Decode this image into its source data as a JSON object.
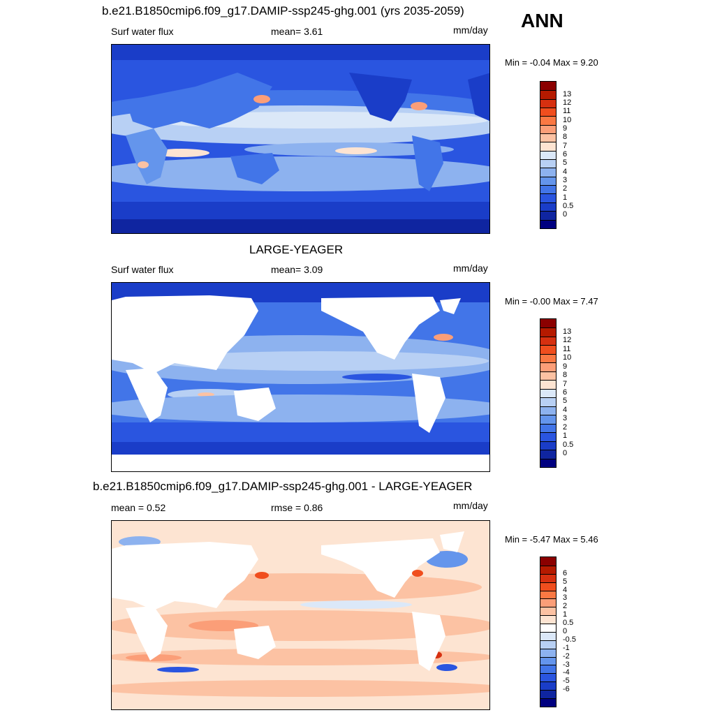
{
  "header": {
    "ann_label": "ANN"
  },
  "panels": [
    {
      "title": "b.e21.B1850cmip6.f09_g17.DAMIP-ssp245-ghg.001 (yrs 2035-2059)",
      "left_label": "Surf water flux",
      "mid_label": "mean=   3.61",
      "units": "mm/day",
      "minmax": "Min =  -0.04 Max =    9.20",
      "land_filled": true,
      "colorbar": {
        "colors": [
          "#8b0000",
          "#b51a00",
          "#d63010",
          "#f04e1e",
          "#fa7843",
          "#fb9e78",
          "#fcc2a3",
          "#fde4d2",
          "#dbe8f8",
          "#b8d0f4",
          "#8db2ef",
          "#6495ec",
          "#4275e8",
          "#2a55e0",
          "#1a3dc8",
          "#0f25a0",
          "#000080"
        ],
        "ticks": [
          "13",
          "12",
          "11",
          "10",
          "9",
          "8",
          "7",
          "6",
          "5",
          "4",
          "3",
          "2",
          "1",
          "0.5",
          "0"
        ]
      }
    },
    {
      "title": "LARGE-YEAGER",
      "left_label": "Surf water flux",
      "mid_label": "mean=   3.09",
      "units": "mm/day",
      "minmax": "Min =  -0.00 Max =    7.47",
      "land_filled": false,
      "colorbar": {
        "colors": [
          "#8b0000",
          "#b51a00",
          "#d63010",
          "#f04e1e",
          "#fa7843",
          "#fb9e78",
          "#fcc2a3",
          "#fde4d2",
          "#dbe8f8",
          "#b8d0f4",
          "#8db2ef",
          "#6495ec",
          "#4275e8",
          "#2a55e0",
          "#1a3dc8",
          "#0f25a0",
          "#000080"
        ],
        "ticks": [
          "13",
          "12",
          "11",
          "10",
          "9",
          "8",
          "7",
          "6",
          "5",
          "4",
          "3",
          "2",
          "1",
          "0.5",
          "0"
        ]
      }
    },
    {
      "title": "b.e21.B1850cmip6.f09_g17.DAMIP-ssp245-ghg.001 - LARGE-YEAGER",
      "left_label": "mean =    0.52",
      "mid_label": "rmse =    0.86",
      "units": "mm/day",
      "minmax": "Min =  -5.47 Max =    5.46",
      "land_filled": false,
      "colorbar": {
        "colors": [
          "#8b0000",
          "#b51a00",
          "#d63010",
          "#f04e1e",
          "#fa7843",
          "#fb9e78",
          "#fcc2a3",
          "#fde4d2",
          "#ffffff",
          "#dbe8f8",
          "#b8d0f4",
          "#8db2ef",
          "#6495ec",
          "#4275e8",
          "#2a55e0",
          "#1a3dc8",
          "#0f25a0",
          "#000080"
        ],
        "ticks": [
          "6",
          "5",
          "4",
          "3",
          "2",
          "1",
          "0.5",
          "0",
          "-0.5",
          "-1",
          "-2",
          "-3",
          "-4",
          "-5",
          "-6"
        ]
      }
    }
  ]
}
